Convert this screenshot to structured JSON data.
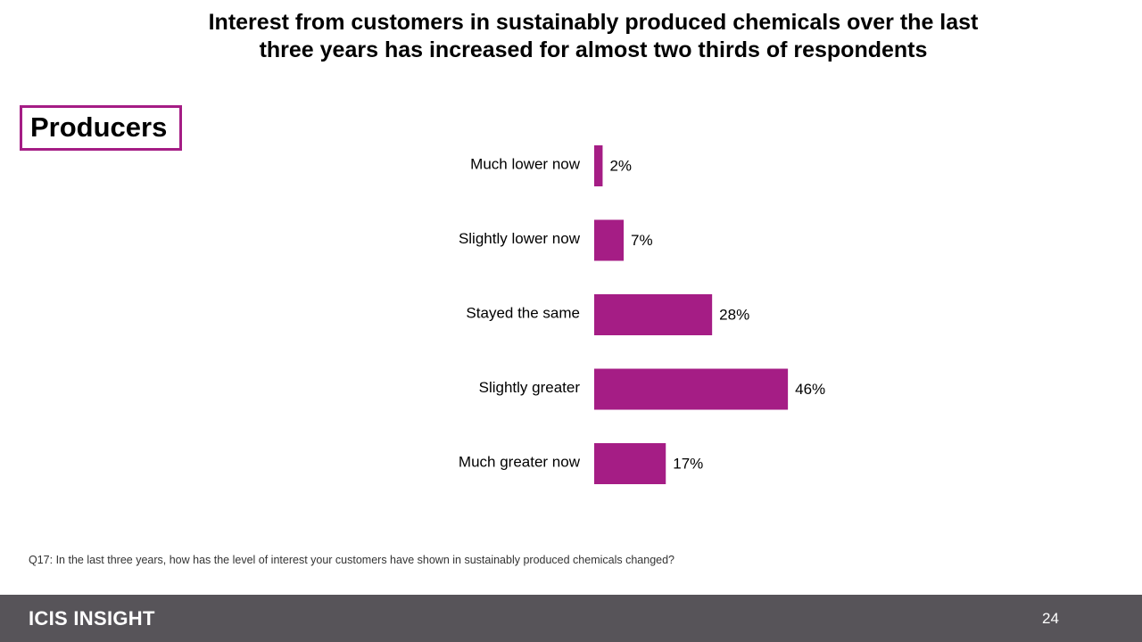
{
  "title_line1": "Interest from customers in sustainably produced chemicals over the last",
  "title_line2": "three years has increased for almost two thirds of respondents",
  "segment_label": "Producers",
  "question": "Q17: In the last three years, how has the level of interest your customers have shown in sustainably produced chemicals changed?",
  "footer": {
    "brand": "ICIS INSIGHT",
    "page_number": "24"
  },
  "colors": {
    "bar": "#a51d85",
    "accent": "#a51d85",
    "footer_bg": "#575459"
  },
  "chart_data": {
    "type": "bar",
    "orientation": "horizontal",
    "title": "Interest from customers in sustainably produced chemicals over the last three years has increased for almost two thirds of respondents",
    "categories": [
      "Much lower now",
      "Slightly lower now",
      "Stayed the same",
      "Slightly greater",
      "Much greater now"
    ],
    "values": [
      2,
      7,
      28,
      46,
      17
    ],
    "value_labels": [
      "2%",
      "7%",
      "28%",
      "46%",
      "17%"
    ],
    "unit": "%",
    "xlim": [
      0,
      100
    ],
    "grid": false,
    "legend": "none"
  }
}
